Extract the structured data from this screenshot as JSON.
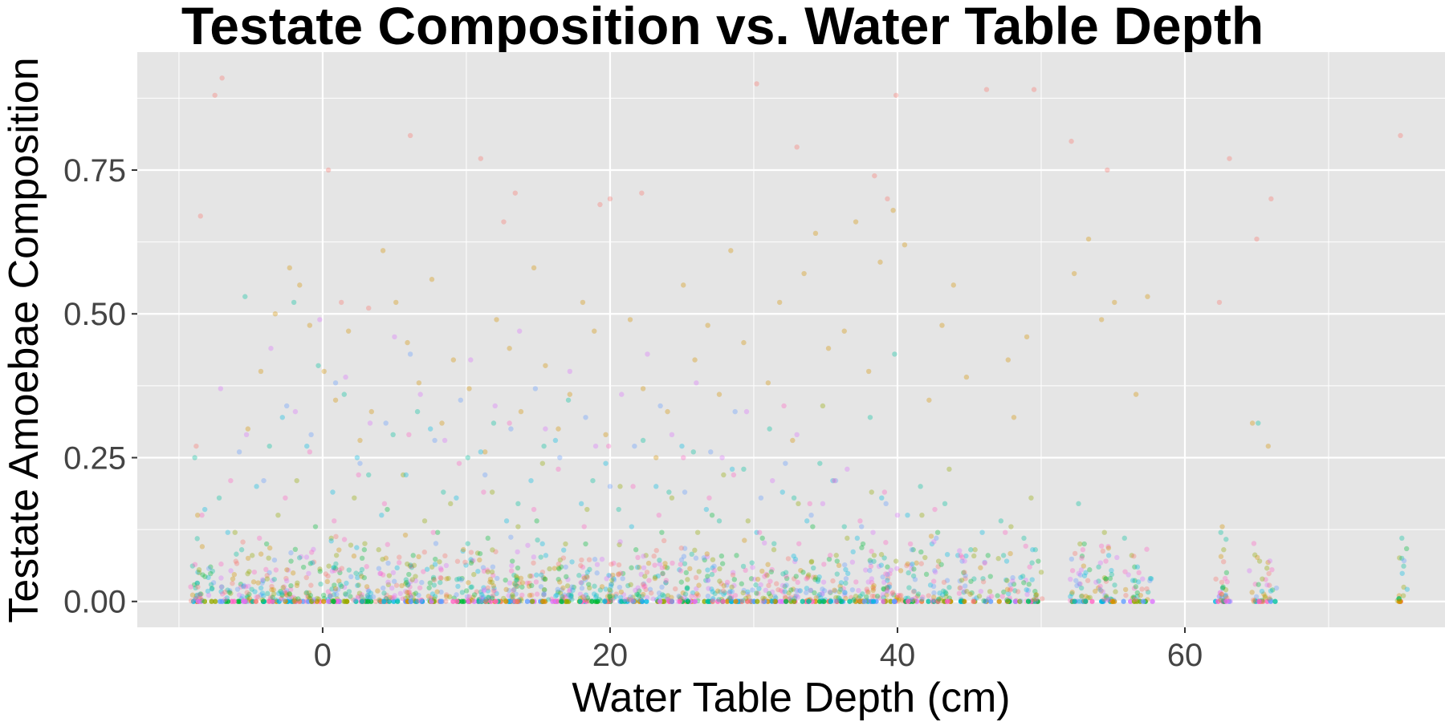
{
  "chart_data": {
    "type": "scatter",
    "title": "Testate Composition vs. Water Table Depth",
    "xlabel": "Water Table Depth (cm)",
    "ylabel": "Testate Amoebae Composition",
    "xlim": [
      -12.9,
      78.1
    ],
    "ylim": [
      -0.045,
      0.955
    ],
    "x_ticks": [
      0,
      20,
      40,
      60
    ],
    "x_tick_labels": [
      "0",
      "20",
      "40",
      "60"
    ],
    "y_ticks": [
      0,
      0.25,
      0.5,
      0.75
    ],
    "y_tick_labels": [
      "0.00",
      "0.25",
      "0.50",
      "0.75"
    ],
    "grid": true,
    "legend": "none",
    "panel_background": "#E5E5E5",
    "grid_color": "#FFFFFF",
    "point_opacity": 0.35,
    "palette": [
      "#F8766D",
      "#D39200",
      "#93AA00",
      "#00BA38",
      "#00C19F",
      "#00B9E3",
      "#619CFF",
      "#DB72FB",
      "#FF61C3"
    ],
    "series": [
      {
        "x": [
          -8.8,
          -8.5,
          -7.5,
          -7.0,
          0.4,
          1.3,
          3.2,
          6.1,
          11.0,
          12.6,
          13.4,
          19.3,
          20.0,
          22.2,
          30.2,
          33.0,
          38.4,
          39.3,
          39.9,
          46.2,
          49.5,
          52.1,
          54.6,
          62.4,
          63.1,
          65.0,
          66.0,
          75.0
        ],
        "y": [
          0.27,
          0.67,
          0.88,
          0.91,
          0.75,
          0.52,
          0.51,
          0.81,
          0.77,
          0.66,
          0.71,
          0.69,
          0.7,
          0.71,
          0.9,
          0.79,
          0.74,
          0.7,
          0.88,
          0.89,
          0.89,
          0.8,
          0.75,
          0.52,
          0.77,
          0.63,
          0.7,
          0.81
        ]
      },
      {
        "x": [
          -8.7,
          -5.2,
          -4.3,
          -3.3,
          -2.3,
          -1.6,
          -0.9,
          0.1,
          0.9,
          1.8,
          2.6,
          3.4,
          4.2,
          5.1,
          5.9,
          6.7,
          7.6,
          8.3,
          9.1,
          10.2,
          11.3,
          12.1,
          13.0,
          13.8,
          14.7,
          15.5,
          16.4,
          17.2,
          18.1,
          18.9,
          19.7,
          21.4,
          22.3,
          23.2,
          24.0,
          25.1,
          25.9,
          26.8,
          27.6,
          28.4,
          29.3,
          31.0,
          31.8,
          32.7,
          33.5,
          34.3,
          35.2,
          36.3,
          37.1,
          38.0,
          38.8,
          39.7,
          40.5,
          42.2,
          43.1,
          43.9,
          44.8,
          47.7,
          48.1,
          49.0,
          52.3,
          53.3,
          54.2,
          55.1,
          56.6,
          57.4,
          62.6,
          64.7,
          65.8
        ],
        "y": [
          0.15,
          0.3,
          0.4,
          0.5,
          0.58,
          0.55,
          0.48,
          0.4,
          0.35,
          0.47,
          0.28,
          0.33,
          0.61,
          0.52,
          0.45,
          0.38,
          0.56,
          0.31,
          0.42,
          0.37,
          0.26,
          0.49,
          0.44,
          0.33,
          0.58,
          0.41,
          0.3,
          0.36,
          0.52,
          0.47,
          0.29,
          0.49,
          0.37,
          0.25,
          0.33,
          0.55,
          0.42,
          0.48,
          0.36,
          0.61,
          0.45,
          0.38,
          0.52,
          0.28,
          0.57,
          0.64,
          0.44,
          0.47,
          0.66,
          0.4,
          0.59,
          0.68,
          0.62,
          0.35,
          0.48,
          0.55,
          0.39,
          0.42,
          0.32,
          0.46,
          0.57,
          0.63,
          0.49,
          0.52,
          0.36,
          0.53,
          0.13,
          0.31,
          0.27
        ]
      },
      {
        "x": [
          -8.6,
          -6.1,
          -4.9,
          -3.1,
          -1.8,
          0.6,
          2.2,
          3.9,
          5.6,
          7.1,
          8.9,
          10.4,
          11.8,
          13.6,
          15.3,
          16.9,
          18.4,
          20.7,
          22.5,
          24.3,
          26.1,
          27.9,
          29.6,
          31.4,
          33.1,
          34.8,
          36.5,
          38.2,
          39.9,
          41.7,
          43.6,
          45.4,
          47.9,
          49.3,
          52.7,
          54.4,
          56.3,
          62.7,
          65.2,
          75.2
        ],
        "y": [
          0.05,
          0.12,
          0.08,
          0.15,
          0.21,
          0.11,
          0.18,
          0.09,
          0.22,
          0.14,
          0.17,
          0.07,
          0.19,
          0.13,
          0.24,
          0.1,
          0.16,
          0.2,
          0.08,
          0.18,
          0.12,
          0.22,
          0.14,
          0.09,
          0.17,
          0.34,
          0.11,
          0.19,
          0.07,
          0.15,
          0.23,
          0.09,
          0.13,
          0.18,
          0.1,
          0.12,
          0.08,
          0.09,
          0.07,
          0.01
        ]
      },
      {
        "x": [
          -7.8,
          -5.7,
          -3.9,
          -2.2,
          -0.5,
          1.2,
          2.9,
          4.5,
          6.3,
          8.0,
          9.7,
          11.5,
          13.2,
          14.9,
          16.6,
          18.3,
          20.1,
          21.8,
          23.6,
          25.3,
          27.1,
          28.8,
          30.6,
          32.3,
          34.1,
          35.8,
          37.6,
          39.3,
          41.1,
          42.8,
          44.6,
          46.3,
          48.1,
          49.8,
          53.0,
          54.8,
          56.5,
          62.9,
          66.1
        ],
        "y": [
          0.06,
          0.03,
          0.1,
          0.07,
          0.13,
          0.05,
          0.09,
          0.16,
          0.08,
          0.12,
          0.04,
          0.11,
          0.07,
          0.14,
          0.06,
          0.1,
          0.03,
          0.09,
          0.12,
          0.05,
          0.15,
          0.08,
          0.11,
          0.04,
          0.13,
          0.07,
          0.1,
          0.06,
          0.09,
          0.12,
          0.05,
          0.08,
          0.03,
          0.07,
          0.1,
          0.04,
          0.06,
          0.05,
          0.02
        ]
      },
      {
        "x": [
          -8.9,
          -7.2,
          -5.4,
          -3.7,
          -2.0,
          -0.3,
          1.5,
          3.2,
          4.9,
          6.6,
          8.4,
          10.1,
          11.9,
          13.6,
          15.4,
          17.1,
          18.8,
          20.6,
          22.3,
          24.1,
          25.8,
          27.6,
          29.3,
          31.1,
          32.8,
          34.6,
          36.3,
          38.1,
          39.8,
          41.6,
          43.3,
          45.1,
          47.2,
          48.8,
          49.6,
          52.6,
          54.0,
          55.8,
          57.6,
          62.5,
          65.1,
          75.1
        ],
        "y": [
          0.25,
          0.18,
          0.53,
          0.27,
          0.52,
          0.41,
          0.36,
          0.22,
          0.29,
          0.33,
          0.19,
          0.25,
          0.31,
          0.17,
          0.27,
          0.35,
          0.21,
          0.16,
          0.28,
          0.19,
          0.26,
          0.14,
          0.23,
          0.3,
          0.18,
          0.24,
          0.13,
          0.32,
          0.43,
          0.2,
          0.17,
          0.09,
          0.14,
          0.11,
          0.09,
          0.17,
          0.06,
          0.11,
          0.04,
          0.12,
          0.31,
          0.11
        ]
      },
      {
        "x": [
          -8.2,
          -6.6,
          -4.6,
          -2.8,
          -1.1,
          0.7,
          2.4,
          4.1,
          5.8,
          7.5,
          9.3,
          11.0,
          12.8,
          14.5,
          16.2,
          18.0,
          19.7,
          21.5,
          23.2,
          25.0,
          26.7,
          28.5,
          30.2,
          32.0,
          33.7,
          35.5,
          37.2,
          38.9,
          40.7,
          42.4,
          44.2,
          45.9,
          47.6,
          49.4,
          53.1,
          54.7,
          56.7
        ],
        "y": [
          0.16,
          0.12,
          0.2,
          0.32,
          0.27,
          0.19,
          0.25,
          0.15,
          0.22,
          0.3,
          0.18,
          0.26,
          0.14,
          0.21,
          0.28,
          0.17,
          0.24,
          0.13,
          0.2,
          0.27,
          0.16,
          0.23,
          0.12,
          0.19,
          0.14,
          0.21,
          0.11,
          0.18,
          0.15,
          0.1,
          0.08,
          0.12,
          0.07,
          0.09,
          0.05,
          0.08,
          0.06
        ]
      },
      {
        "x": [
          -5.8,
          -4.1,
          -2.5,
          -0.8,
          0.9,
          2.6,
          4.4,
          6.1,
          7.8,
          9.6,
          11.3,
          13.1,
          14.8,
          16.5,
          18.3,
          20.0,
          21.7,
          23.5,
          25.2,
          27.0,
          28.7,
          30.5,
          32.2,
          34.0,
          35.7,
          37.5,
          39.2,
          41.0,
          42.7,
          44.5
        ],
        "y": [
          0.26,
          0.21,
          0.34,
          0.29,
          0.38,
          0.24,
          0.31,
          0.43,
          0.28,
          0.35,
          0.22,
          0.3,
          0.37,
          0.25,
          0.32,
          0.2,
          0.27,
          0.34,
          0.19,
          0.26,
          0.33,
          0.18,
          0.24,
          0.15,
          0.21,
          0.13,
          0.17,
          0.09,
          0.11,
          0.07
        ]
      },
      {
        "x": [
          -7.1,
          -5.3,
          -3.6,
          -1.9,
          -0.2,
          1.6,
          3.3,
          5.0,
          6.8,
          8.5,
          10.3,
          12.0,
          13.7,
          15.5,
          17.2,
          19.0,
          20.8,
          22.6,
          24.3,
          26.0,
          27.8,
          29.5,
          31.3,
          33.0,
          34.8,
          36.5,
          38.3,
          40.0
        ],
        "y": [
          0.37,
          0.29,
          0.44,
          0.33,
          0.49,
          0.39,
          0.31,
          0.46,
          0.36,
          0.28,
          0.42,
          0.34,
          0.47,
          0.3,
          0.4,
          0.27,
          0.36,
          0.43,
          0.29,
          0.38,
          0.25,
          0.33,
          0.21,
          0.29,
          0.17,
          0.23,
          0.12,
          0.15
        ]
      },
      {
        "x": [
          -8.4,
          -6.4,
          -4.4,
          -2.6,
          -0.9,
          0.8,
          2.5,
          4.3,
          6.0,
          7.7,
          9.5,
          11.2,
          13.0,
          14.7,
          16.4,
          18.2,
          19.9,
          21.6,
          23.4,
          25.1,
          26.9,
          28.6,
          30.4,
          32.1,
          33.9,
          35.6,
          37.4,
          39.1,
          40.9,
          42.6,
          44.4,
          47.5,
          49.2,
          52.9,
          54.5,
          56.8,
          62.8,
          64.9
        ],
        "y": [
          0.15,
          0.21,
          0.11,
          0.18,
          0.26,
          0.14,
          0.22,
          0.17,
          0.29,
          0.12,
          0.24,
          0.19,
          0.31,
          0.16,
          0.23,
          0.13,
          0.27,
          0.2,
          0.15,
          0.25,
          0.18,
          0.22,
          0.12,
          0.34,
          0.17,
          0.21,
          0.14,
          0.19,
          0.1,
          0.16,
          0.08,
          0.12,
          0.06,
          0.09,
          0.07,
          0.05,
          0.04,
          0.03
        ]
      }
    ]
  }
}
